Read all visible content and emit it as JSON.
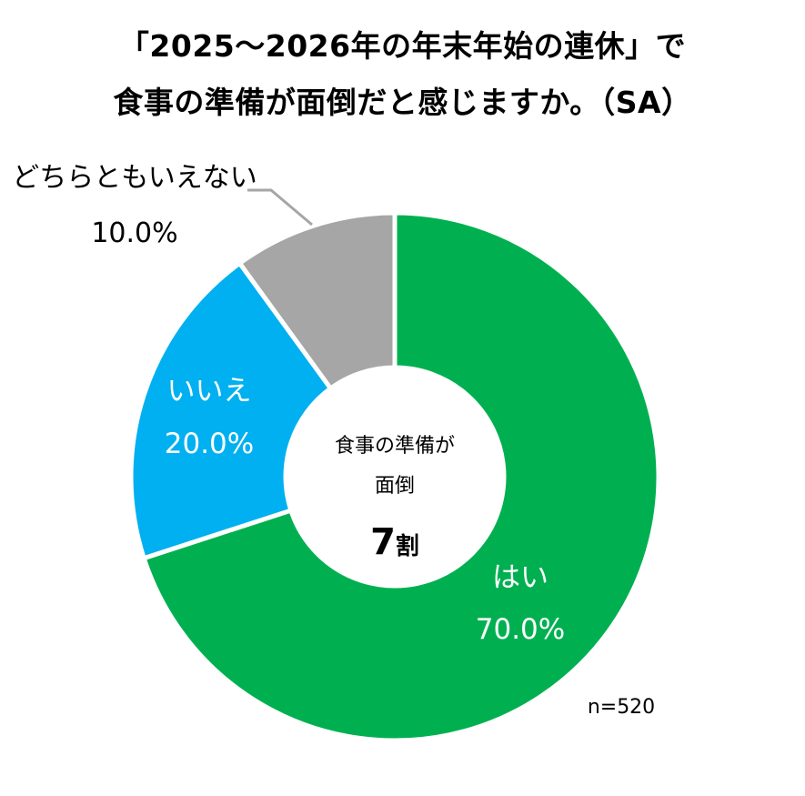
{
  "title": {
    "line1": "「2025～2026年の年末年始の連休」で",
    "line2": "食事の準備が面倒だと感じますか。（SA）"
  },
  "chart_data": {
    "type": "pie",
    "variant": "donut",
    "title": "「2025～2026年の年末年始の連休」で食事の準備が面倒だと感じますか。（SA）",
    "categories": [
      "はい",
      "いいえ",
      "どちらともいえない"
    ],
    "values": [
      70.0,
      20.0,
      10.0
    ],
    "value_labels": [
      "70.0%",
      "20.0%",
      "10.0%"
    ],
    "colors": [
      "#00b050",
      "#00b0f0",
      "#a6a6a6"
    ],
    "start": "12 o'clock, clockwise",
    "n_label": "n=520",
    "center": {
      "line1": "食事の準備が",
      "line2": "面倒",
      "big_number": "7",
      "big_unit": "割"
    }
  }
}
